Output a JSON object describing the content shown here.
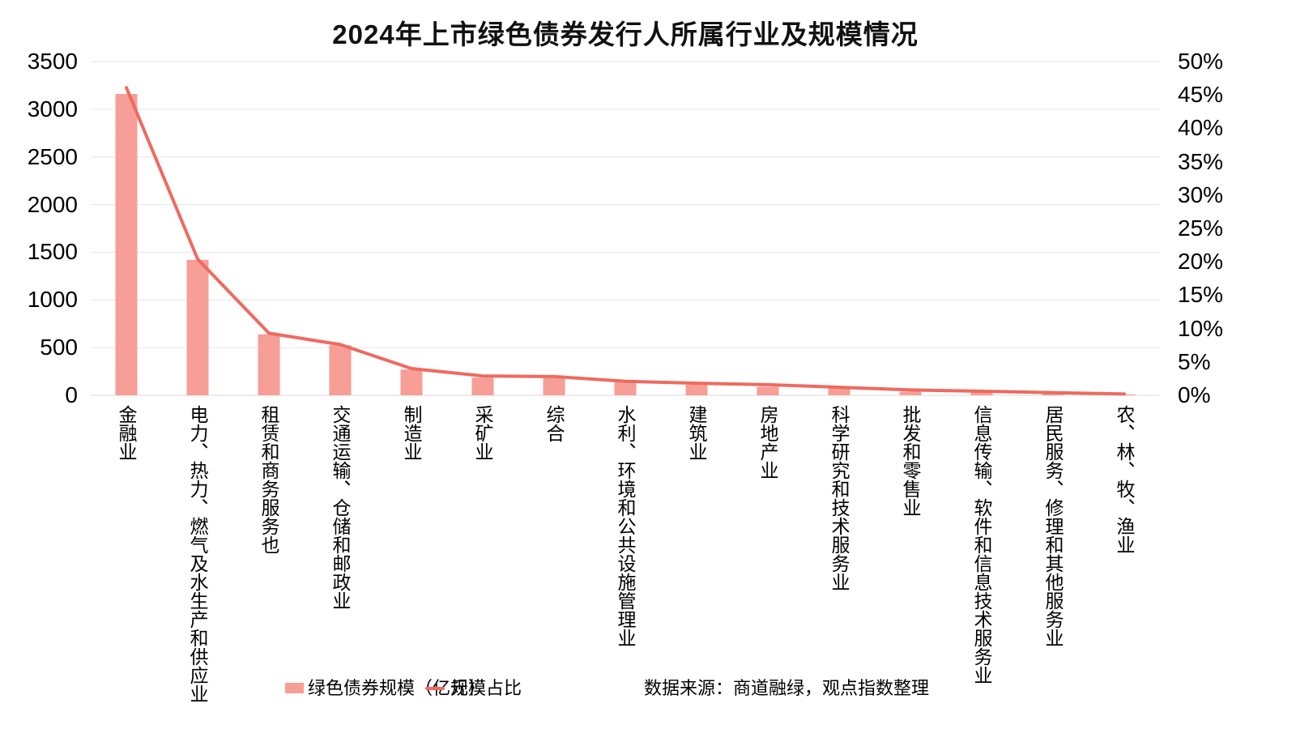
{
  "title": "2024年上市绿色债券发行人所属行业及规模情况",
  "legend": {
    "bar_label": "绿色债券规模（亿元）",
    "line_label": "规模占比"
  },
  "source_note": "数据来源：商道融绿，观点指数整理",
  "colors": {
    "bar_fill": "#F79E96",
    "line_stroke": "#EE6A60",
    "gridline": "#E6E6E6",
    "axis_line": "#D9D9D9",
    "text": "#000000"
  },
  "chart_data": {
    "type": "bar",
    "subtype": "combo-bar-line-dual-axis",
    "title": "2024年上市绿色债券发行人所属行业及规模情况",
    "categories": [
      "金融业",
      "电力、热力、燃气及水生产和供应业",
      "租赁和商务服务也",
      "交通运输、仓储和邮政业",
      "制造业",
      "采矿业",
      "综合",
      "水利、环境和公共设施管理业",
      "建筑业",
      "房地产业",
      "科学研究和技术服务业",
      "批发和零售业",
      "信息传输、软件和信息技术服务业",
      "居民服务、修理和其他服务业",
      "农、林、牧、渔业"
    ],
    "series": [
      {
        "name": "绿色债券规模（亿元）",
        "type": "bar",
        "axis": "left",
        "values": [
          3160,
          1420,
          640,
          525,
          270,
          185,
          180,
          145,
          110,
          90,
          72,
          38,
          32,
          17,
          6
        ]
      },
      {
        "name": "规模占比",
        "type": "line",
        "axis": "right",
        "unit": "%",
        "values": [
          46.1,
          20.4,
          9.3,
          7.6,
          4.0,
          2.9,
          2.8,
          2.1,
          1.8,
          1.6,
          1.2,
          0.8,
          0.6,
          0.4,
          0.2
        ]
      }
    ],
    "left_axis": {
      "min": 0,
      "max": 3500,
      "step": 500,
      "ticks": [
        "3500",
        "3000",
        "2500",
        "2000",
        "1500",
        "1000",
        "500",
        "0"
      ]
    },
    "right_axis": {
      "min": 0,
      "max": 50,
      "step": 5,
      "ticks": [
        "50%",
        "45%",
        "40%",
        "35%",
        "30%",
        "25%",
        "20%",
        "15%",
        "10%",
        "5%",
        "0%"
      ]
    },
    "grid": "horizontal",
    "legend_position": "bottom"
  }
}
